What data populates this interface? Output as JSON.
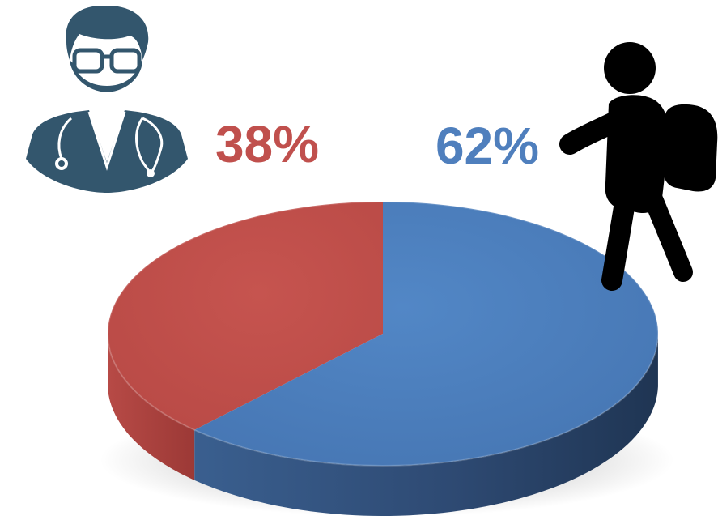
{
  "chart_data": {
    "type": "pie",
    "style": "3d",
    "slices": [
      {
        "label": "38%",
        "value": 38,
        "color": "#c0504d",
        "side_color": "#a33d39",
        "icon": "doctor-icon"
      },
      {
        "label": "62%",
        "value": 62,
        "color": "#4f7fbd",
        "side_color": "#2f4d75",
        "icon": "backpacker-icon"
      }
    ],
    "icon_colors": {
      "doctor": "#33566d",
      "backpacker": "#000000"
    }
  }
}
